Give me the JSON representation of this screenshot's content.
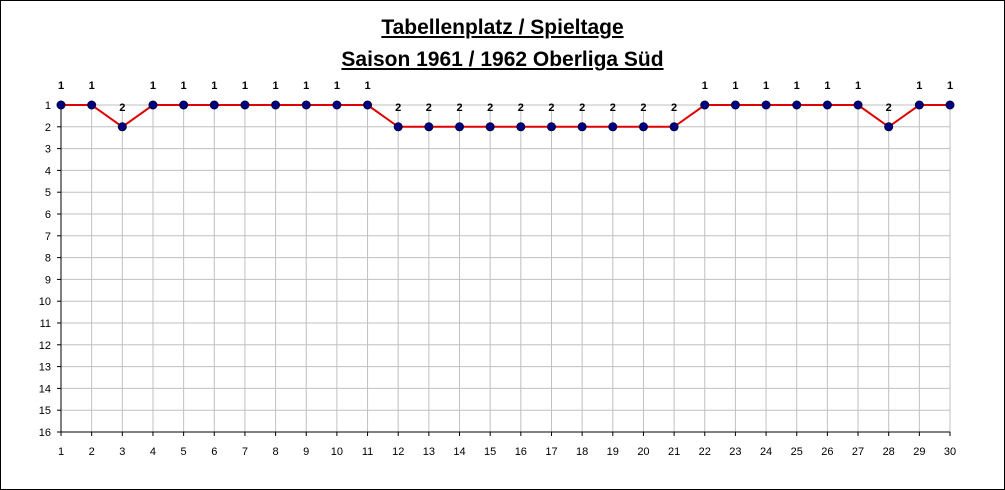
{
  "chart_data": {
    "type": "line",
    "title_line1": "Tabellenplatz / Spieltage",
    "title_line2": "Saison 1961 / 1962 Oberliga Süd",
    "xlabel": "",
    "ylabel": "",
    "x": [
      1,
      2,
      3,
      4,
      5,
      6,
      7,
      8,
      9,
      10,
      11,
      12,
      13,
      14,
      15,
      16,
      17,
      18,
      19,
      20,
      21,
      22,
      23,
      24,
      25,
      26,
      27,
      28,
      29,
      30
    ],
    "values": [
      1,
      1,
      2,
      1,
      1,
      1,
      1,
      1,
      1,
      1,
      1,
      2,
      2,
      2,
      2,
      2,
      2,
      2,
      2,
      2,
      2,
      1,
      1,
      1,
      1,
      1,
      1,
      2,
      1,
      1
    ],
    "xlim": [
      1,
      30
    ],
    "ylim": [
      1,
      16
    ],
    "y_inverted": true,
    "y_ticks": [
      1,
      2,
      3,
      4,
      5,
      6,
      7,
      8,
      9,
      10,
      11,
      12,
      13,
      14,
      15,
      16
    ],
    "grid": true,
    "legend": "none",
    "line_color": "#e00000",
    "marker_color": "#000080",
    "data_labels": true
  }
}
